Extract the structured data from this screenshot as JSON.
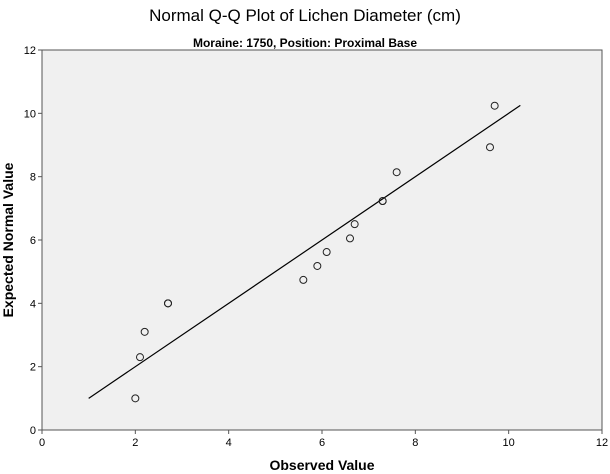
{
  "chart_data": {
    "type": "scatter",
    "title": "Normal Q-Q Plot of Lichen Diameter (cm)",
    "subtitle": "Moraine: 1750, Position: Proximal Base",
    "xlabel": "Observed Value",
    "ylabel": "Expected Normal Value",
    "xlim": [
      0,
      12
    ],
    "ylim": [
      0,
      12
    ],
    "xticks": [
      0,
      2,
      4,
      6,
      8,
      10,
      12
    ],
    "yticks": [
      0,
      2,
      4,
      6,
      8,
      10,
      12
    ],
    "grid": false,
    "legend": null,
    "background": "#f0f0f0",
    "points": [
      {
        "x": 2.0,
        "y": 1.0
      },
      {
        "x": 2.1,
        "y": 2.3
      },
      {
        "x": 2.2,
        "y": 3.1
      },
      {
        "x": 2.7,
        "y": 4.0
      },
      {
        "x": 2.7,
        "y": 4.0
      },
      {
        "x": 5.6,
        "y": 4.74
      },
      {
        "x": 5.9,
        "y": 5.18
      },
      {
        "x": 6.1,
        "y": 5.62
      },
      {
        "x": 6.6,
        "y": 6.05
      },
      {
        "x": 6.7,
        "y": 6.5
      },
      {
        "x": 7.3,
        "y": 7.23
      },
      {
        "x": 7.3,
        "y": 7.23
      },
      {
        "x": 7.6,
        "y": 8.14
      },
      {
        "x": 9.6,
        "y": 8.93
      },
      {
        "x": 9.7,
        "y": 10.24
      }
    ],
    "reference_line": {
      "x1": 1.0,
      "y1": 1.0,
      "x2": 10.25,
      "y2": 10.25
    }
  }
}
